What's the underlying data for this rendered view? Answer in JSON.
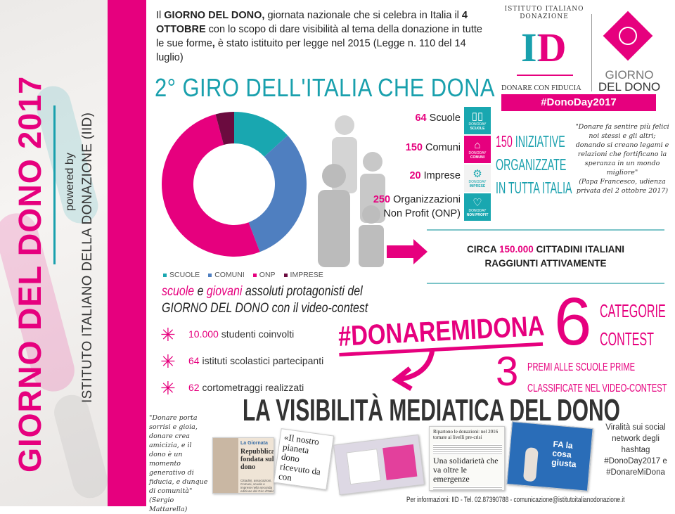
{
  "sidebar": {
    "title": "GIORNO DEL DONO 2017",
    "powered_by": "powered by",
    "organization": "ISTITUTO ITALIANO DELLA DONAZIONE (IID)"
  },
  "intro": {
    "p1": "Il ",
    "b1": "GIORNO DEL DONO,",
    "p2": " giornata nazionale che si celebra in Italia il ",
    "b2": "4 OTTOBRE",
    "p3": " con lo scopo di dare visibilità al tema della donazione in tutte le sue forme",
    "b3": ",",
    "p4": " è stato istituito per legge nel 2015 (Legge n. 110 del 14 luglio)"
  },
  "logo": {
    "arc_text": "ISTITUTO ITALIANO DONAZIONE",
    "monogram": "ID",
    "tagline": "DONARE CON FIDUCIA",
    "brand_line1": "GIORNO",
    "brand_line2": "DEL DONO",
    "hashtag": "#DonoDay2017"
  },
  "main_title": "2° GIRO DELL'ITALIA CHE DONA",
  "chart_data": {
    "type": "pie",
    "donut": true,
    "categories": [
      "SCUOLE",
      "COMUNI",
      "ONP",
      "IMPRESE"
    ],
    "values": [
      64,
      150,
      250,
      20
    ],
    "colors": [
      "#19a7b0",
      "#4f7fc0",
      "#e6007e",
      "#6b0b3f"
    ],
    "legend": "bottom"
  },
  "stats": [
    {
      "num": "64",
      "label": " Scuole",
      "tile": "SCUOLE",
      "tile_icon": "book-icon",
      "tile_color": "#19a7b0"
    },
    {
      "num": "150",
      "label": " Comuni",
      "tile": "COMUNI",
      "tile_icon": "building-icon",
      "tile_color": "#e6007e"
    },
    {
      "num": "20",
      "label": " Imprese",
      "tile": "IMPRESE",
      "tile_icon": "gears-icon",
      "tile_color": "#f2f2f2"
    },
    {
      "num": "250",
      "label": " Organizzazioni",
      "label2": "Non Profit (ONP)",
      "tile": "NON PROFIT",
      "tile_icon": "heart-icon",
      "tile_color": "#19a7b0"
    }
  ],
  "tile_brand": "DONODAY",
  "initiatives": {
    "num": "150",
    "line1": " INIZIATIVE",
    "line2": "ORGANIZZATE",
    "line3": "IN TUTTA ITALIA"
  },
  "quote_pope": {
    "text": "\"Donare fa sentire più felici noi stessi e gli altri; donando si creano legami e relazioni che fortificano la speranza in un mondo migliore\"",
    "source": "(Papa Francesco, udienza privata del 2 ottobre 2017)"
  },
  "reach": {
    "pre": "CIRCA ",
    "num": "150.000",
    "post": " CITTADINI ITALIANI",
    "line2": "RAGGIUNTI ATTIVAMENTE"
  },
  "schools": {
    "w1": "scuole",
    "w2": " e ",
    "w3": "giovani",
    "w4": " assoluti protagonisti del",
    "line2": "GIORNO DEL DONO con il video-contest"
  },
  "contest_stats": [
    {
      "num": "10.000",
      "label": " studenti coinvolti"
    },
    {
      "num": "64",
      "label": " istituti scolastici partecipanti"
    },
    {
      "num": "62",
      "label": " cortometraggi realizzati"
    }
  ],
  "contest": {
    "hashtag": "#DONAREMIDONA",
    "categories_num": "6",
    "categories_l1": "CATEGORIE",
    "categories_l2": "CONTEST",
    "prizes_num": "3",
    "prizes_l1": "PREMI ALLE SCUOLE PRIME",
    "prizes_l2": "CLASSIFICATE NEL VIDEO-CONTEST"
  },
  "media": {
    "title": "LA VISIBILITÀ MEDIATICA DEL DONO",
    "quote": "\"Donare porta sorrisi e gioia, donare crea amicizia, e il dono è un momento generativo di fiducia, e dunque di comunità\"",
    "quote_source": "(Sergio Mattarella)",
    "clip1_kicker": "La Giornata",
    "clip1_headline": "Repubblica fondata sul dono",
    "clip1_body": "Cittadini, associazioni, Comuni, scuole e imprese nella seconda edizione del Giro d'Italia che dona, mercoledì",
    "clip2_headline": "«Il nostro pianeta dono ricevuto da con",
    "clip3_headline": "Ripartono le donazioni: nel 2016 tornate ai livelli pre-crisi",
    "clip4_headline": "Una solidarietà che va oltre le emergenze",
    "clip5_text": "FA la cosa giusta",
    "virality": "Viralità sui social network degli hashtag #DonoDay2017 e #DonareMiDona"
  },
  "footer": "Per informazioni: IID - Tel. 02.87390788 - comunicazione@istitutoitalianodonazione.it"
}
